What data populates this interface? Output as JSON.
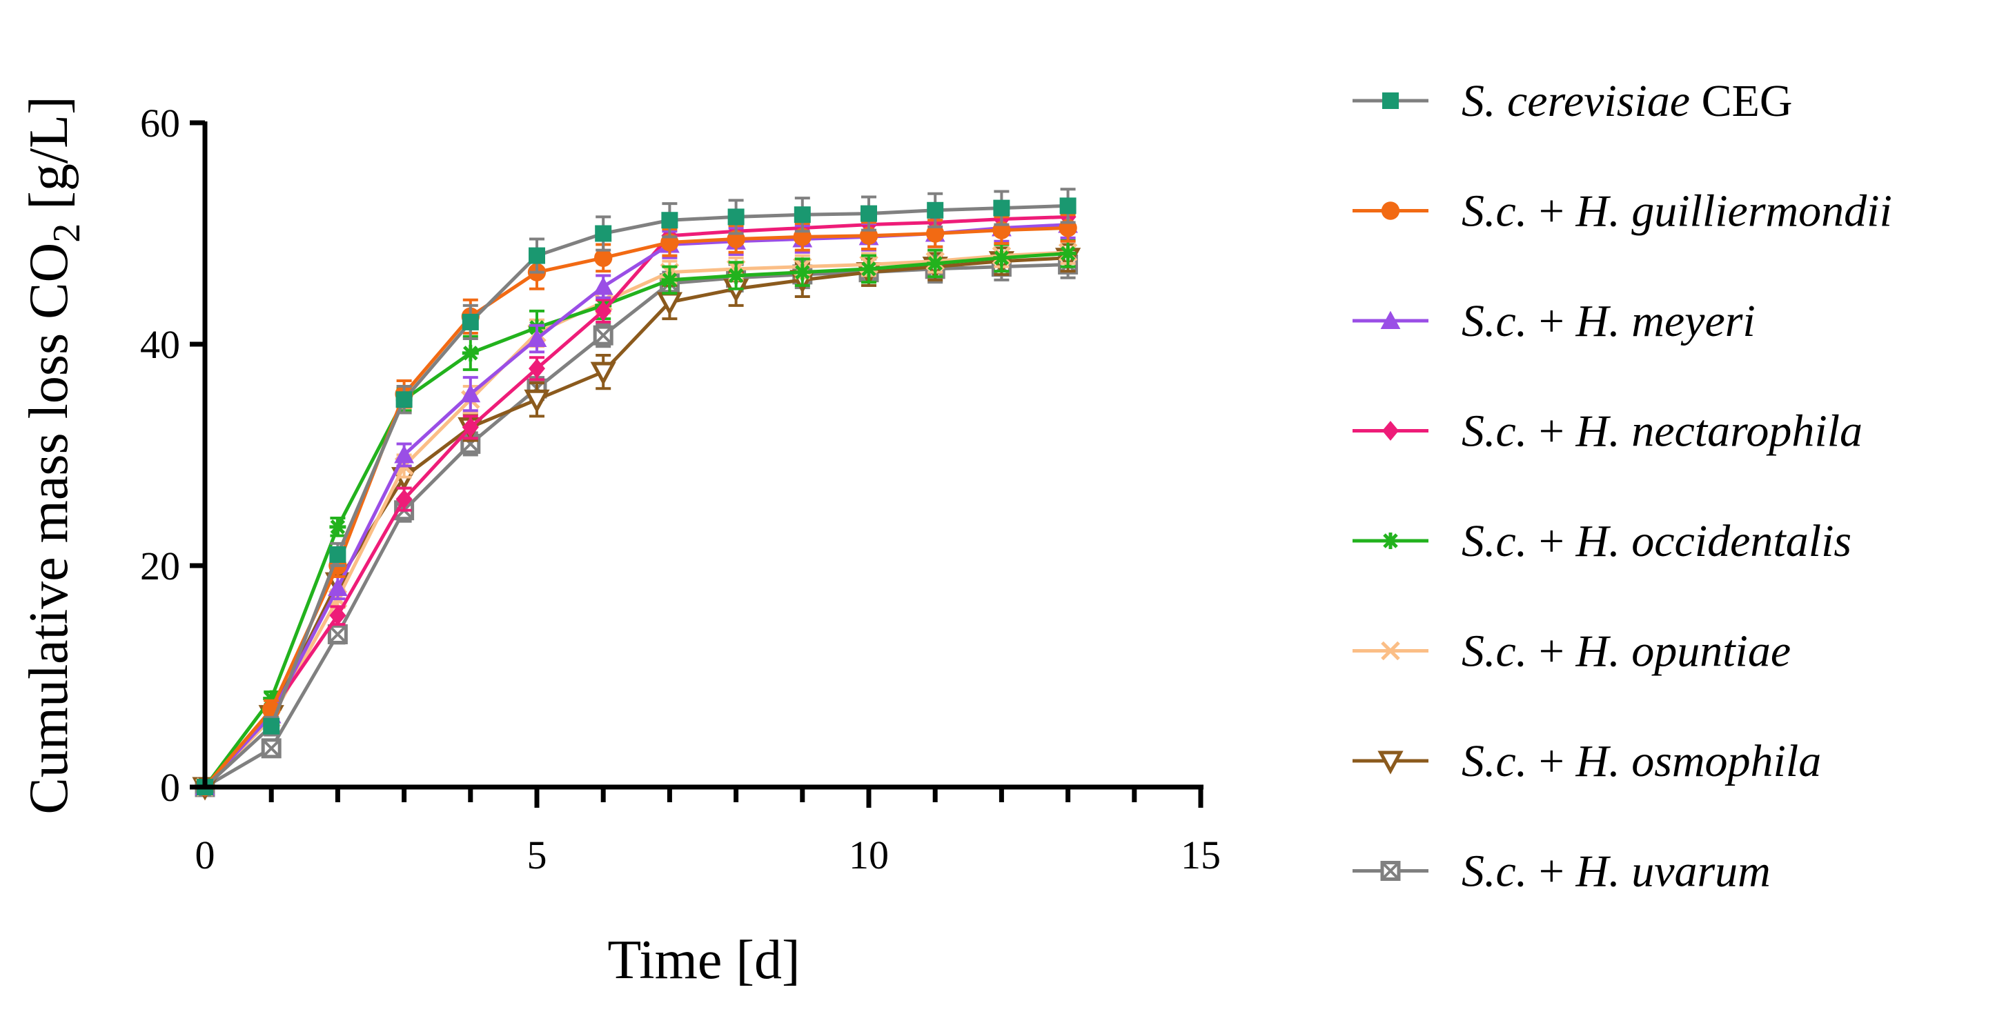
{
  "chart_data": {
    "type": "line",
    "title": "",
    "xlabel": "Time [d]",
    "ylabel_parts": {
      "main": "Cumulative mass loss CO",
      "sub": "2",
      "unit": " [g/L]"
    },
    "xlim": [
      0,
      15
    ],
    "ylim": [
      0,
      60
    ],
    "xticks": [
      "0",
      "5",
      "10",
      "15"
    ],
    "yticks": [
      "0",
      "20",
      "40",
      "60"
    ],
    "grid": false,
    "legend_position": "right",
    "x": [
      0,
      1,
      2,
      3,
      4,
      5,
      6,
      7,
      8,
      9,
      10,
      11,
      12,
      13
    ],
    "series": [
      {
        "name": "S. cerevisiae CEG",
        "label_italic": "S. cerevisiae",
        "label_rest": " CEG",
        "color": "#1a9870",
        "line_color": "#808080",
        "marker": "square-filled",
        "values": [
          0,
          5.5,
          21,
          35,
          42,
          48,
          50,
          51.2,
          51.5,
          51.7,
          51.8,
          52.1,
          52.3,
          52.5
        ],
        "errors": [
          0,
          0.8,
          1.0,
          1.2,
          1.5,
          1.5,
          1.5,
          1.5,
          1.5,
          1.5,
          1.5,
          1.5,
          1.5,
          1.5
        ]
      },
      {
        "name": "S.c. + H. guilliermondii",
        "label_italic": "S.c.",
        "label_rest": " + ",
        "label_italic2": "H. guilliermondii",
        "color": "#f26a13",
        "line_color": "#f26a13",
        "marker": "circle-filled",
        "values": [
          0,
          7,
          20,
          35.5,
          42.5,
          46.5,
          47.8,
          49.2,
          49.5,
          49.7,
          49.8,
          50.0,
          50.3,
          50.5
        ],
        "errors": [
          0,
          0.8,
          1.0,
          1.2,
          1.5,
          1.5,
          1.2,
          1.2,
          1.2,
          1.2,
          1.2,
          1.2,
          1.2,
          1.2
        ]
      },
      {
        "name": "S.c. + H. meyeri",
        "label_italic": "S.c.",
        "label_rest": " + ",
        "label_italic2": "H. meyeri",
        "color": "#9a4ee6",
        "line_color": "#9a4ee6",
        "marker": "triangle-filled",
        "values": [
          0,
          6.5,
          18,
          30,
          35.5,
          40.5,
          45.2,
          49,
          49.3,
          49.5,
          49.7,
          50.0,
          50.5,
          50.8
        ],
        "errors": [
          0,
          0.8,
          1.0,
          1.0,
          1.5,
          1.2,
          1.0,
          1.2,
          1.2,
          1.2,
          1.2,
          1.2,
          1.2,
          1.2
        ]
      },
      {
        "name": "S.c. + H. nectarophila",
        "label_italic": "S.c.",
        "label_rest": " + ",
        "label_italic2": "H. nectarophila",
        "color": "#ee1c78",
        "line_color": "#ee1c78",
        "marker": "diamond-filled",
        "values": [
          0,
          6.8,
          15.5,
          26,
          32.5,
          37.8,
          43,
          49.8,
          50.2,
          50.5,
          50.8,
          51.0,
          51.3,
          51.5
        ],
        "errors": [
          0,
          0.6,
          0.8,
          1.0,
          1.0,
          1.0,
          1.0,
          1.0,
          1.0,
          1.0,
          1.0,
          1.0,
          1.0,
          1.0
        ]
      },
      {
        "name": "S.c. + H. occidentalis",
        "label_italic": "S.c.",
        "label_rest": " + ",
        "label_italic2": "H. occidentalis",
        "color": "#22b21d",
        "line_color": "#22b21d",
        "marker": "asterisk",
        "values": [
          0,
          8,
          23.5,
          35,
          39.2,
          41.5,
          43.5,
          45.8,
          46.2,
          46.5,
          46.8,
          47.3,
          47.8,
          48.2
        ],
        "errors": [
          0,
          0.6,
          0.8,
          1.0,
          1.5,
          1.5,
          1.2,
          1.2,
          1.2,
          1.2,
          1.2,
          1.2,
          1.2,
          1.2
        ]
      },
      {
        "name": "S.c. + H. opuntiae",
        "label_italic": "S.c.",
        "label_rest": " + ",
        "label_italic2": "H. opuntiae",
        "color": "#fbbe86",
        "line_color": "#fbbe86",
        "marker": "cross",
        "values": [
          0,
          6.2,
          17,
          29,
          35,
          41,
          43.8,
          46.5,
          46.8,
          47.0,
          47.2,
          47.5,
          48.0,
          48.3
        ],
        "errors": [
          0,
          0.6,
          0.8,
          1.0,
          1.2,
          1.2,
          1.0,
          1.0,
          1.0,
          1.0,
          1.0,
          1.0,
          1.0,
          1.0
        ]
      },
      {
        "name": "S.c. + H. osmophila",
        "label_italic": "S.c.",
        "label_rest": " + ",
        "label_italic2": "H. osmophila",
        "color": "#8b5a1d",
        "line_color": "#8b5a1d",
        "marker": "triangle-down-open",
        "values": [
          0,
          6.5,
          18.5,
          28,
          32.5,
          35,
          37.5,
          43.8,
          45,
          45.8,
          46.5,
          47.0,
          47.5,
          47.8
        ],
        "errors": [
          0,
          0.6,
          0.8,
          1.0,
          1.2,
          1.5,
          1.5,
          1.5,
          1.5,
          1.5,
          1.2,
          1.2,
          1.2,
          1.2
        ]
      },
      {
        "name": "S.c. + H. uvarum",
        "label_italic": "S.c.",
        "label_rest": " + ",
        "label_italic2": "H. uvarum",
        "color": "#808080",
        "line_color": "#808080",
        "marker": "square-x-open",
        "values": [
          0,
          3.5,
          13.8,
          25,
          31,
          36,
          40.8,
          45.5,
          46,
          46.3,
          46.5,
          46.8,
          47.0,
          47.2
        ],
        "errors": [
          0,
          0.6,
          0.8,
          1.0,
          1.0,
          1.0,
          1.0,
          1.0,
          1.2,
          1.2,
          1.2,
          1.2,
          1.2,
          1.2
        ]
      }
    ]
  }
}
